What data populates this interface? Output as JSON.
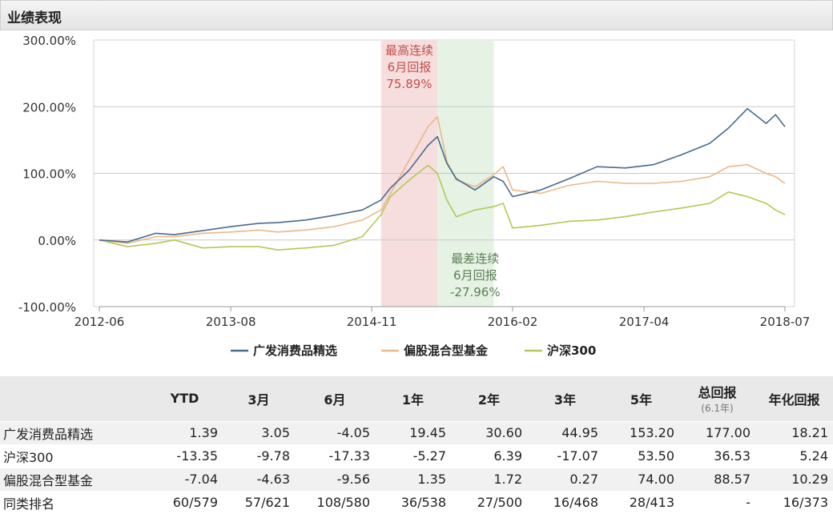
{
  "panel": {
    "title": "业绩表现"
  },
  "chart_data": {
    "type": "line",
    "ylim": [
      -100,
      300
    ],
    "yticks": [
      "300.00%",
      "200.00%",
      "100.00%",
      "0.00%",
      "-100.00%"
    ],
    "ytick_values": [
      300,
      200,
      100,
      0,
      -100
    ],
    "xticks": [
      "2012-06",
      "2013-08",
      "2014-11",
      "2016-02",
      "2017-04",
      "2018-07"
    ],
    "x_range": [
      "2012-06",
      "2018-07"
    ],
    "grid": "horizontal",
    "legend_placement": "bottom",
    "series": [
      {
        "name": "广发消费品精选",
        "color": "#4a6a8c",
        "x": [
          "2012-06",
          "2012-09",
          "2012-12",
          "2013-02",
          "2013-05",
          "2013-08",
          "2013-11",
          "2014-01",
          "2014-04",
          "2014-07",
          "2014-10",
          "2014-12",
          "2015-01",
          "2015-03",
          "2015-05",
          "2015-06",
          "2015-07",
          "2015-08",
          "2015-10",
          "2015-12",
          "2016-01",
          "2016-02",
          "2016-05",
          "2016-08",
          "2016-11",
          "2017-02",
          "2017-05",
          "2017-08",
          "2017-11",
          "2018-01",
          "2018-03",
          "2018-05",
          "2018-06",
          "2018-07"
        ],
        "y": [
          0,
          -3,
          10,
          8,
          14,
          20,
          25,
          26,
          30,
          37,
          45,
          60,
          78,
          105,
          142,
          155,
          115,
          92,
          75,
          95,
          88,
          65,
          75,
          92,
          110,
          108,
          113,
          128,
          145,
          168,
          197,
          175,
          188,
          170
        ]
      },
      {
        "name": "偏股混合型基金",
        "color": "#e8b98a",
        "x": [
          "2012-06",
          "2012-09",
          "2012-12",
          "2013-02",
          "2013-05",
          "2013-08",
          "2013-11",
          "2014-01",
          "2014-04",
          "2014-07",
          "2014-10",
          "2014-12",
          "2015-01",
          "2015-03",
          "2015-05",
          "2015-06",
          "2015-07",
          "2015-08",
          "2015-10",
          "2015-12",
          "2016-01",
          "2016-02",
          "2016-05",
          "2016-08",
          "2016-11",
          "2017-02",
          "2017-05",
          "2017-08",
          "2017-11",
          "2018-01",
          "2018-03",
          "2018-05",
          "2018-06",
          "2018-07"
        ],
        "y": [
          0,
          -5,
          5,
          5,
          10,
          12,
          15,
          12,
          15,
          20,
          30,
          45,
          70,
          120,
          170,
          185,
          118,
          90,
          80,
          98,
          110,
          75,
          70,
          82,
          88,
          85,
          85,
          88,
          95,
          110,
          113,
          100,
          95,
          85
        ]
      },
      {
        "name": "沪深300",
        "color": "#b2c957",
        "x": [
          "2012-06",
          "2012-09",
          "2012-12",
          "2013-02",
          "2013-05",
          "2013-08",
          "2013-11",
          "2014-01",
          "2014-04",
          "2014-07",
          "2014-10",
          "2014-12",
          "2015-01",
          "2015-03",
          "2015-05",
          "2015-06",
          "2015-07",
          "2015-08",
          "2015-10",
          "2015-12",
          "2016-01",
          "2016-02",
          "2016-05",
          "2016-08",
          "2016-11",
          "2017-02",
          "2017-05",
          "2017-08",
          "2017-11",
          "2018-01",
          "2018-03",
          "2018-05",
          "2018-06",
          "2018-07"
        ],
        "y": [
          0,
          -10,
          -5,
          0,
          -12,
          -10,
          -10,
          -15,
          -12,
          -8,
          5,
          38,
          65,
          90,
          112,
          100,
          60,
          35,
          45,
          50,
          55,
          18,
          22,
          28,
          30,
          35,
          42,
          48,
          55,
          72,
          65,
          55,
          45,
          38
        ]
      }
    ],
    "annotations": [
      {
        "name": "best",
        "lines": [
          "最高连续",
          "6月回报",
          "75.89%"
        ],
        "color": "#c0504d",
        "band_color": "#f7dede",
        "x_start": "2014-12",
        "x_end": "2015-06"
      },
      {
        "name": "worst",
        "lines": [
          "最差连续",
          "6月回报",
          "-27.96%"
        ],
        "color": "#5a7f55",
        "band_color": "#e6f2e4",
        "x_start": "2015-06",
        "x_end": "2015-12"
      }
    ]
  },
  "table": {
    "headers": [
      {
        "label": "",
        "sub": ""
      },
      {
        "label": "YTD",
        "sub": ""
      },
      {
        "label": "3月",
        "sub": ""
      },
      {
        "label": "6月",
        "sub": ""
      },
      {
        "label": "1年",
        "sub": ""
      },
      {
        "label": "2年",
        "sub": ""
      },
      {
        "label": "3年",
        "sub": ""
      },
      {
        "label": "5年",
        "sub": ""
      },
      {
        "label": "总回报",
        "sub": "(6.1年)"
      },
      {
        "label": "年化回报",
        "sub": ""
      }
    ],
    "rows": [
      [
        "广发消费品精选",
        "1.39",
        "3.05",
        "-4.05",
        "19.45",
        "30.60",
        "44.95",
        "153.20",
        "177.00",
        "18.21"
      ],
      [
        "沪深300",
        "-13.35",
        "-9.78",
        "-17.33",
        "-5.27",
        "6.39",
        "-17.07",
        "53.50",
        "36.53",
        "5.24"
      ],
      [
        "偏股混合型基金",
        "-7.04",
        "-4.63",
        "-9.56",
        "1.35",
        "1.72",
        "0.27",
        "74.00",
        "88.57",
        "10.29"
      ],
      [
        "同类排名",
        "60/579",
        "57/621",
        "108/580",
        "36/538",
        "27/500",
        "16/468",
        "28/413",
        "-",
        "16/373"
      ]
    ]
  }
}
